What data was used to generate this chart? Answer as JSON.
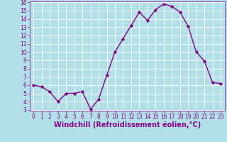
{
  "x": [
    0,
    1,
    2,
    3,
    4,
    5,
    6,
    7,
    8,
    9,
    10,
    11,
    12,
    13,
    14,
    15,
    16,
    17,
    18,
    19,
    20,
    21,
    22,
    23
  ],
  "y": [
    6.0,
    5.8,
    5.2,
    4.0,
    5.0,
    5.0,
    5.2,
    3.1,
    4.3,
    7.2,
    10.0,
    11.6,
    13.2,
    14.8,
    13.8,
    15.1,
    15.8,
    15.5,
    14.8,
    13.1,
    10.0,
    8.9,
    6.3,
    6.2
  ],
  "line_color": "#880088",
  "marker": "D",
  "marker_size": 2.2,
  "bg_color": "#b2e0e8",
  "grid_color": "#ffffff",
  "xlabel": "Windchill (Refroidissement éolien,°C)",
  "xlabel_color": "#880088",
  "tick_color": "#880088",
  "ylim": [
    3,
    16
  ],
  "xlim": [
    -0.5,
    23.5
  ],
  "yticks": [
    3,
    4,
    5,
    6,
    7,
    8,
    9,
    10,
    11,
    12,
    13,
    14,
    15,
    16
  ],
  "xticks": [
    0,
    1,
    2,
    3,
    4,
    5,
    6,
    7,
    8,
    9,
    10,
    11,
    12,
    13,
    14,
    15,
    16,
    17,
    18,
    19,
    20,
    21,
    22,
    23
  ],
  "tick_fontsize": 5.5,
  "xlabel_fontsize": 7.0,
  "linewidth": 1.0
}
